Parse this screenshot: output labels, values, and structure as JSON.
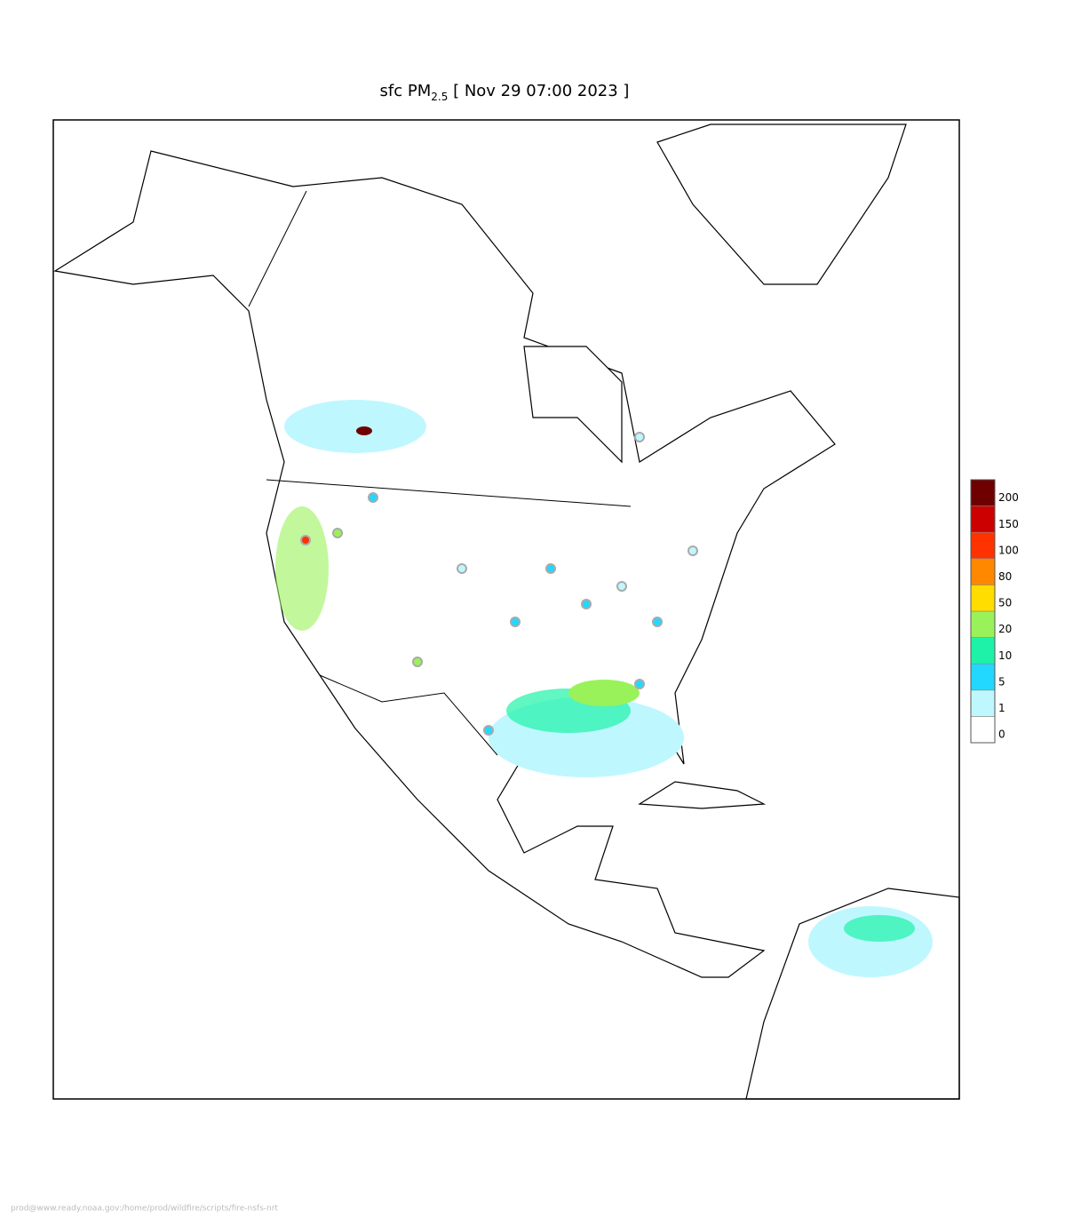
{
  "header": {
    "title_prefix": "sfc PM",
    "title_subscript": "2.5",
    "title_suffix": " [ Nov 29 07:00 2023 ]"
  },
  "legend": {
    "levels": [
      0,
      1,
      5,
      10,
      20,
      50,
      80,
      100,
      150,
      200
    ],
    "colors": [
      "#ffffff",
      "#bff7ff",
      "#22d8ff",
      "#1ef2a8",
      "#99f25a",
      "#ffdd00",
      "#ff8800",
      "#ff3300",
      "#cc0000",
      "#6e0000"
    ]
  },
  "footer": {
    "text": "prod@www.ready.noaa.gov:/home/prod/wildfire/scripts/fire-nsfs-nrt"
  }
}
